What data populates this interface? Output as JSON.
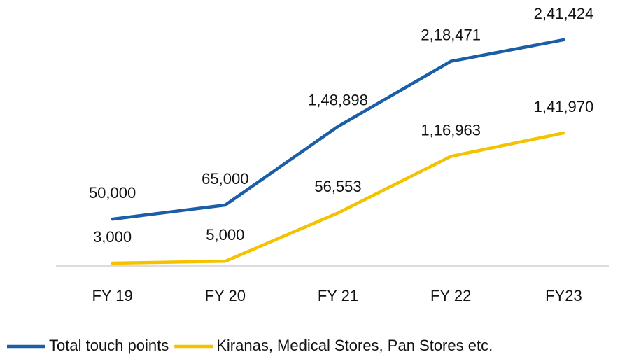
{
  "chart_data": {
    "type": "line",
    "categories": [
      "FY 19",
      "FY 20",
      "FY 21",
      "FY 22",
      "FY23"
    ],
    "ylim": [
      0,
      250000
    ],
    "series": [
      {
        "name": "Total touch points",
        "color": "#1b5ea7",
        "values": [
          50000,
          65000,
          148898,
          218471,
          241424
        ],
        "value_labels": [
          "50,000",
          "65,000",
          "1,48,898",
          "2,18,471",
          "2,41,424"
        ]
      },
      {
        "name": "Kiranas, Medical Stores, Pan Stores etc.",
        "color": "#f4c300",
        "values": [
          3000,
          5000,
          56553,
          116963,
          141970
        ],
        "value_labels": [
          "3,000",
          "5,000",
          "56,553",
          "1,16,963",
          "1,41,970"
        ]
      }
    ]
  }
}
